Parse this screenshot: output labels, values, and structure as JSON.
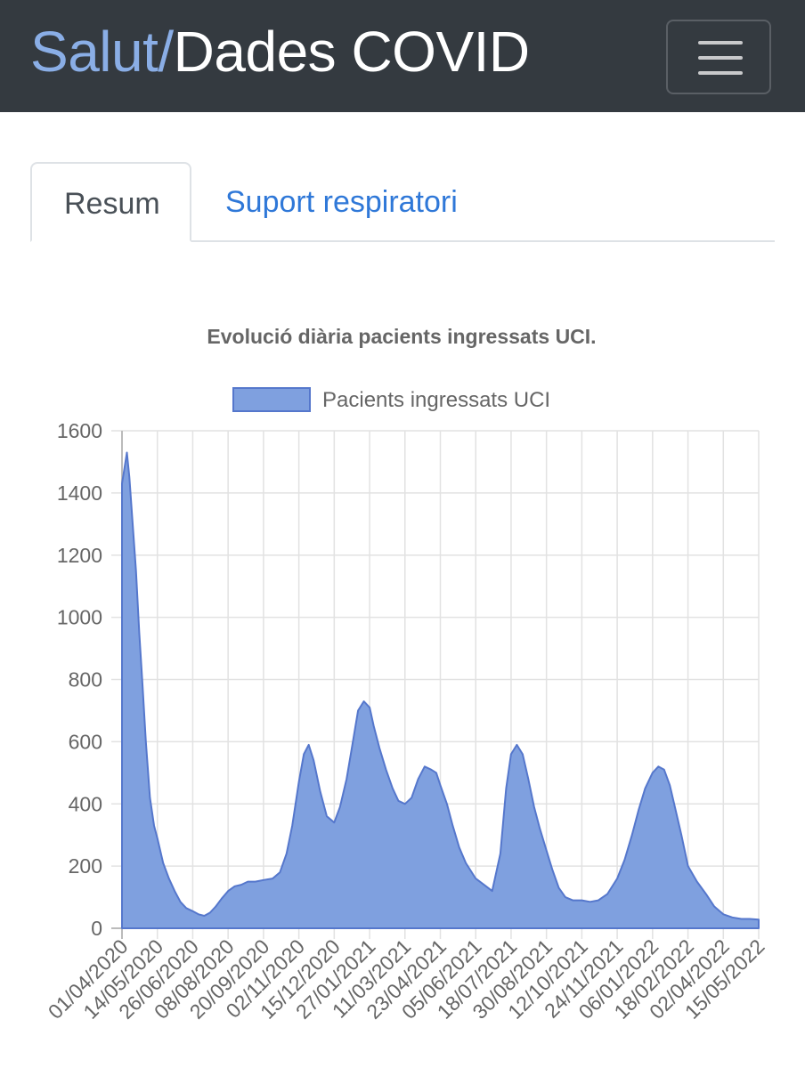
{
  "navbar": {
    "brand_part1": "Salut/",
    "brand_part2": "Dades COVID",
    "menu_icon": "hamburger-menu-icon"
  },
  "tabs": [
    {
      "label": "Resum",
      "active": true
    },
    {
      "label": "Suport respiratori",
      "active": false
    }
  ],
  "colors": {
    "navbar_bg": "#343a40",
    "brand_accent": "#8aaee6",
    "link": "#2f78d8",
    "area_fill": "#7fa0df",
    "area_stroke": "#5577cc"
  },
  "chart_data": {
    "type": "area",
    "title": "Evolució diària pacients ingressats UCI.",
    "legend": {
      "position": "top",
      "label": "Pacients ingressats UCI"
    },
    "xlabel": "",
    "ylabel": "",
    "ylim": [
      0,
      1600
    ],
    "y_ticks": [
      0,
      200,
      400,
      600,
      800,
      1000,
      1200,
      1400,
      1600
    ],
    "grid": true,
    "x_tick_labels": [
      "01/04/2020",
      "14/05/2020",
      "26/06/2020",
      "08/08/2020",
      "20/09/2020",
      "02/11/2020",
      "15/12/2020",
      "27/01/2021",
      "11/03/2021",
      "23/04/2021",
      "05/06/2021",
      "18/07/2021",
      "30/08/2021",
      "12/10/2021",
      "24/11/2021",
      "06/01/2022",
      "18/02/2022",
      "02/04/2022",
      "15/05/2022"
    ],
    "series": [
      {
        "name": "Pacients ingressats UCI",
        "x": [
          "01/04/2020",
          "04/04/2020",
          "07/04/2020",
          "10/04/2020",
          "14/04/2020",
          "18/04/2020",
          "22/04/2020",
          "26/04/2020",
          "30/04/2020",
          "05/05/2020",
          "10/05/2020",
          "14/05/2020",
          "21/05/2020",
          "28/05/2020",
          "04/06/2020",
          "11/06/2020",
          "18/06/2020",
          "26/06/2020",
          "03/07/2020",
          "10/07/2020",
          "17/07/2020",
          "24/07/2020",
          "31/07/2020",
          "08/08/2020",
          "16/08/2020",
          "24/08/2020",
          "01/09/2020",
          "10/09/2020",
          "20/09/2020",
          "01/10/2020",
          "10/10/2020",
          "18/10/2020",
          "25/10/2020",
          "02/11/2020",
          "08/11/2020",
          "14/11/2020",
          "20/11/2020",
          "28/11/2020",
          "06/12/2020",
          "15/12/2020",
          "22/12/2020",
          "30/12/2020",
          "06/01/2021",
          "13/01/2021",
          "20/01/2021",
          "27/01/2021",
          "01/02/2021",
          "08/02/2021",
          "16/02/2021",
          "24/02/2021",
          "03/03/2021",
          "11/03/2021",
          "19/03/2021",
          "27/03/2021",
          "04/04/2021",
          "12/04/2021",
          "18/04/2021",
          "23/04/2021",
          "01/05/2021",
          "08/05/2021",
          "16/05/2021",
          "24/05/2021",
          "05/06/2021",
          "15/06/2021",
          "25/06/2021",
          "05/07/2021",
          "12/07/2021",
          "18/07/2021",
          "25/07/2021",
          "01/08/2021",
          "08/08/2021",
          "15/08/2021",
          "22/08/2021",
          "30/08/2021",
          "06/09/2021",
          "14/09/2021",
          "22/09/2021",
          "01/10/2021",
          "12/10/2021",
          "22/10/2021",
          "01/11/2021",
          "12/11/2021",
          "24/11/2021",
          "03/12/2021",
          "12/12/2021",
          "20/12/2021",
          "28/12/2021",
          "06/01/2022",
          "13/01/2022",
          "20/01/2022",
          "27/01/2022",
          "03/02/2022",
          "10/02/2022",
          "18/02/2022",
          "01/03/2022",
          "12/03/2022",
          "22/03/2022",
          "02/04/2022",
          "13/04/2022",
          "24/04/2022",
          "04/05/2022",
          "15/05/2022"
        ],
        "values": [
          1430,
          1480,
          1530,
          1450,
          1300,
          1150,
          950,
          780,
          600,
          420,
          330,
          290,
          210,
          160,
          120,
          85,
          65,
          55,
          45,
          40,
          50,
          70,
          95,
          120,
          135,
          140,
          150,
          150,
          155,
          160,
          180,
          240,
          330,
          470,
          560,
          590,
          540,
          440,
          360,
          340,
          390,
          480,
          590,
          700,
          730,
          710,
          650,
          580,
          510,
          450,
          410,
          400,
          420,
          480,
          520,
          510,
          500,
          460,
          400,
          330,
          260,
          210,
          160,
          140,
          120,
          240,
          450,
          560,
          590,
          560,
          480,
          390,
          320,
          250,
          190,
          130,
          100,
          90,
          90,
          85,
          90,
          110,
          160,
          220,
          300,
          380,
          450,
          500,
          520,
          510,
          460,
          380,
          300,
          200,
          150,
          110,
          70,
          45,
          35,
          30,
          30,
          28
        ]
      }
    ]
  }
}
